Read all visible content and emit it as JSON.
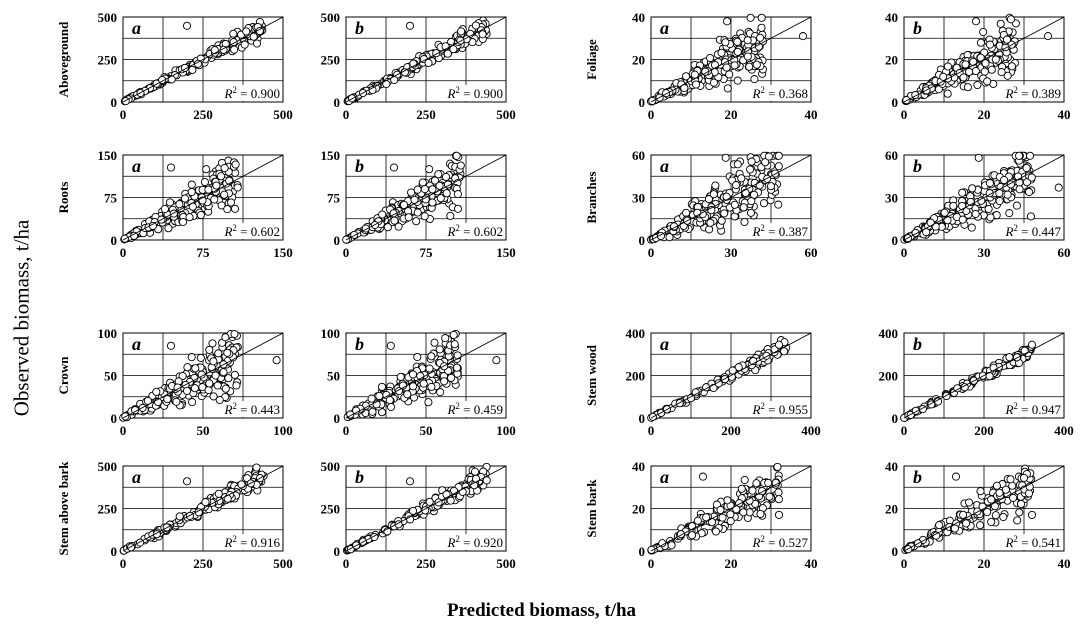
{
  "figure": {
    "ylabel": "Observed biomass, t/ha",
    "xlabel": "Predicted biomass, t/ha"
  },
  "chart_data": [
    {
      "type": "scatter",
      "component": "Aboveground",
      "panel": "a",
      "ylabel": "Aboveground",
      "xlim": [
        0,
        500
      ],
      "ylim": [
        0,
        500
      ],
      "xticks": [
        0,
        250,
        500
      ],
      "yticks": [
        0,
        250,
        500
      ],
      "r2": "0.900",
      "n": 180,
      "spread": 0.12,
      "diag_visible": false,
      "x_max_pt": 440,
      "outliers": [
        [
          200,
          448
        ]
      ]
    },
    {
      "type": "scatter",
      "component": "Aboveground",
      "panel": "b",
      "ylabel": "",
      "xlim": [
        0,
        500
      ],
      "ylim": [
        0,
        500
      ],
      "xticks": [
        0,
        250,
        500
      ],
      "yticks": [
        0,
        250,
        500
      ],
      "r2": "0.900",
      "n": 180,
      "spread": 0.12,
      "diag_visible": false,
      "x_max_pt": 440,
      "outliers": [
        [
          200,
          448
        ]
      ]
    },
    {
      "type": "scatter",
      "component": "Foliage",
      "panel": "a",
      "ylabel": "Foliage",
      "xlim": [
        0,
        40
      ],
      "ylim": [
        0,
        40
      ],
      "xticks": [
        0,
        20,
        40
      ],
      "yticks": [
        0,
        20,
        40
      ],
      "r2": "0.368",
      "n": 200,
      "spread": 0.5,
      "diag_visible": true,
      "x_max_pt": 28,
      "outliers": [
        [
          19,
          38
        ],
        [
          38,
          31
        ]
      ]
    },
    {
      "type": "scatter",
      "component": "Foliage",
      "panel": "b",
      "ylabel": "",
      "xlim": [
        0,
        40
      ],
      "ylim": [
        0,
        40
      ],
      "xticks": [
        0,
        20,
        40
      ],
      "yticks": [
        0,
        20,
        40
      ],
      "r2": "0.389",
      "n": 200,
      "spread": 0.5,
      "diag_visible": true,
      "x_max_pt": 28,
      "outliers": [
        [
          18,
          38
        ],
        [
          36,
          31
        ]
      ]
    },
    {
      "type": "scatter",
      "component": "Roots",
      "panel": "a",
      "ylabel": "Roots",
      "xlim": [
        0,
        150
      ],
      "ylim": [
        0,
        150
      ],
      "xticks": [
        0,
        75,
        150
      ],
      "yticks": [
        0,
        75,
        150
      ],
      "r2": "0.602",
      "n": 200,
      "spread": 0.4,
      "diag_visible": true,
      "x_max_pt": 108,
      "outliers": [
        [
          45,
          128
        ],
        [
          78,
          125
        ],
        [
          105,
          55
        ]
      ]
    },
    {
      "type": "scatter",
      "component": "Roots",
      "panel": "b",
      "ylabel": "",
      "xlim": [
        0,
        150
      ],
      "ylim": [
        0,
        150
      ],
      "xticks": [
        0,
        75,
        150
      ],
      "yticks": [
        0,
        75,
        150
      ],
      "r2": "0.602",
      "n": 200,
      "spread": 0.4,
      "diag_visible": true,
      "x_max_pt": 108,
      "outliers": [
        [
          45,
          128
        ],
        [
          78,
          125
        ],
        [
          105,
          55
        ]
      ]
    },
    {
      "type": "scatter",
      "component": "Branches",
      "panel": "a",
      "ylabel": "Branches",
      "xlim": [
        0,
        60
      ],
      "ylim": [
        0,
        60
      ],
      "xticks": [
        0,
        30,
        60
      ],
      "yticks": [
        0,
        30,
        60
      ],
      "r2": "0.387",
      "n": 220,
      "spread": 0.55,
      "diag_visible": true,
      "x_max_pt": 48,
      "outliers": [
        [
          28,
          58
        ],
        [
          45,
          38
        ]
      ]
    },
    {
      "type": "scatter",
      "component": "Branches",
      "panel": "b",
      "ylabel": "",
      "xlim": [
        0,
        60
      ],
      "ylim": [
        0,
        60
      ],
      "xticks": [
        0,
        30,
        60
      ],
      "yticks": [
        0,
        30,
        60
      ],
      "r2": "0.447",
      "n": 220,
      "spread": 0.5,
      "diag_visible": true,
      "x_max_pt": 48,
      "outliers": [
        [
          28,
          58
        ],
        [
          58,
          37
        ]
      ]
    },
    {
      "type": "scatter",
      "component": "Crown",
      "panel": "a",
      "ylabel": "Crown",
      "xlim": [
        0,
        100
      ],
      "ylim": [
        0,
        100
      ],
      "xticks": [
        0,
        50,
        100
      ],
      "yticks": [
        0,
        50,
        100
      ],
      "r2": "0.443",
      "n": 200,
      "spread": 0.5,
      "diag_visible": true,
      "x_max_pt": 72,
      "outliers": [
        [
          64,
          95
        ],
        [
          96,
          68
        ],
        [
          30,
          85
        ]
      ]
    },
    {
      "type": "scatter",
      "component": "Crown",
      "panel": "b",
      "ylabel": "",
      "xlim": [
        0,
        100
      ],
      "ylim": [
        0,
        100
      ],
      "xticks": [
        0,
        50,
        100
      ],
      "yticks": [
        0,
        50,
        100
      ],
      "r2": "0.459",
      "n": 200,
      "spread": 0.5,
      "diag_visible": true,
      "x_max_pt": 70,
      "outliers": [
        [
          62,
          94
        ],
        [
          94,
          68
        ],
        [
          28,
          85
        ]
      ]
    },
    {
      "type": "scatter",
      "component": "Stem wood",
      "panel": "a",
      "ylabel": "Stem wood",
      "xlim": [
        0,
        400
      ],
      "ylim": [
        0,
        400
      ],
      "xticks": [
        0,
        200,
        400
      ],
      "yticks": [
        0,
        200,
        400
      ],
      "r2": "0.955",
      "n": 120,
      "spread": 0.1,
      "diag_visible": true,
      "x_max_pt": 340,
      "outliers": [
        [
          320,
          345
        ]
      ]
    },
    {
      "type": "scatter",
      "component": "Stem wood",
      "panel": "b",
      "ylabel": "",
      "xlim": [
        0,
        400
      ],
      "ylim": [
        0,
        400
      ],
      "xticks": [
        0,
        200,
        400
      ],
      "yticks": [
        0,
        200,
        400
      ],
      "r2": "0.947",
      "n": 120,
      "spread": 0.1,
      "diag_visible": true,
      "x_max_pt": 320,
      "outliers": [
        [
          320,
          345
        ]
      ]
    },
    {
      "type": "scatter",
      "component": "Stem above bark",
      "panel": "a",
      "ylabel": "Stem above bark",
      "xlim": [
        0,
        500
      ],
      "ylim": [
        0,
        500
      ],
      "xticks": [
        0,
        250,
        500
      ],
      "yticks": [
        0,
        250,
        500
      ],
      "r2": "0.916",
      "n": 160,
      "spread": 0.14,
      "diag_visible": true,
      "x_max_pt": 440,
      "outliers": [
        [
          200,
          410
        ]
      ]
    },
    {
      "type": "scatter",
      "component": "Stem above bark",
      "panel": "b",
      "ylabel": "",
      "xlim": [
        0,
        500
      ],
      "ylim": [
        0,
        500
      ],
      "xticks": [
        0,
        250,
        500
      ],
      "yticks": [
        0,
        250,
        500
      ],
      "r2": "0.920",
      "n": 160,
      "spread": 0.14,
      "diag_visible": true,
      "x_max_pt": 440,
      "outliers": [
        [
          200,
          410
        ]
      ]
    },
    {
      "type": "scatter",
      "component": "Stem bark",
      "panel": "a",
      "ylabel": "Stem bark",
      "xlim": [
        0,
        40
      ],
      "ylim": [
        0,
        40
      ],
      "xticks": [
        0,
        20,
        40
      ],
      "yticks": [
        0,
        20,
        40
      ],
      "r2": "0.527",
      "n": 150,
      "spread": 0.35,
      "diag_visible": true,
      "x_max_pt": 32,
      "outliers": [
        [
          13,
          35
        ],
        [
          32,
          17
        ]
      ]
    },
    {
      "type": "scatter",
      "component": "Stem bark",
      "panel": "b",
      "ylabel": "",
      "xlim": [
        0,
        40
      ],
      "ylim": [
        0,
        40
      ],
      "xticks": [
        0,
        20,
        40
      ],
      "yticks": [
        0,
        20,
        40
      ],
      "r2": "0.541",
      "n": 150,
      "spread": 0.35,
      "diag_visible": true,
      "x_max_pt": 32,
      "outliers": [
        [
          13,
          35
        ],
        [
          32,
          17
        ]
      ]
    }
  ]
}
